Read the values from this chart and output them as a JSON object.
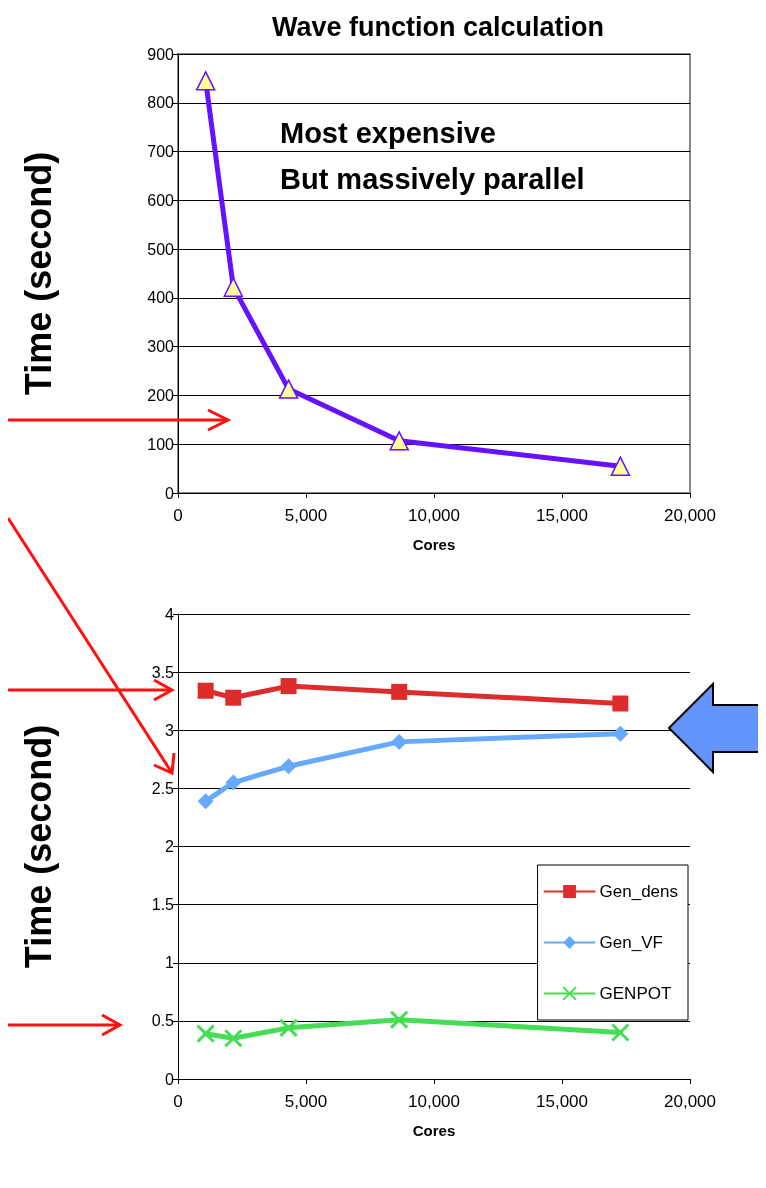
{
  "chart_data": [
    {
      "type": "line",
      "title": "Wave function calculation",
      "xlabel": "Cores",
      "ylabel": "Time (second)",
      "annotations": [
        "Most expensive",
        "But massively parallel"
      ],
      "series": [
        {
          "color": "#6611ff",
          "x": [
            1080,
            2160,
            4320,
            8640,
            17280
          ],
          "values": [
            845,
            422,
            213,
            107,
            55
          ],
          "marker": "triangle"
        }
      ],
      "xlim": [
        0,
        20000
      ],
      "xticks": [
        0,
        {
          "value": 5000,
          "label": "5,000"
        },
        {
          "value": 10000,
          "label": "10,000"
        },
        {
          "value": 15000,
          "label": "15,000"
        },
        {
          "value": 20000,
          "label": "20,000"
        }
      ],
      "ylim": [
        0,
        900
      ],
      "yticks": [
        0,
        100,
        200,
        300,
        400,
        500,
        600,
        700,
        800,
        900
      ],
      "grid": "y",
      "legend": false
    },
    {
      "type": "line",
      "xlabel": "Cores",
      "ylabel": "Time (second)",
      "series": [
        {
          "name": "Gen_dens",
          "color": "#dd2c2c",
          "x": [
            1080,
            2160,
            4320,
            8640,
            17280
          ],
          "values": [
            3.34,
            3.28,
            3.38,
            3.33,
            3.23
          ],
          "marker": "square"
        },
        {
          "name": "Gen_VF",
          "color": "#66aaff",
          "x": [
            1080,
            2160,
            4320,
            8640,
            17280
          ],
          "values": [
            2.39,
            2.55,
            2.69,
            2.9,
            2.97
          ],
          "marker": "diamond"
        },
        {
          "name": "GENPOT",
          "color": "#44dd55",
          "x": [
            1080,
            2160,
            4320,
            8640,
            17280
          ],
          "values": [
            0.39,
            0.35,
            0.44,
            0.51,
            0.4
          ],
          "marker": "cross"
        }
      ],
      "xlim": [
        0,
        20000
      ],
      "xticks": [
        0,
        {
          "value": 5000,
          "label": "5,000"
        },
        {
          "value": 10000,
          "label": "10,000"
        },
        {
          "value": 15000,
          "label": "15,000"
        },
        {
          "value": 20000,
          "label": "20,000"
        }
      ],
      "ylim": [
        0,
        4
      ],
      "yticks": [
        0,
        0.5,
        1,
        1.5,
        2,
        2.5,
        3,
        3.5,
        4
      ],
      "grid": "y",
      "legend": "right"
    }
  ]
}
